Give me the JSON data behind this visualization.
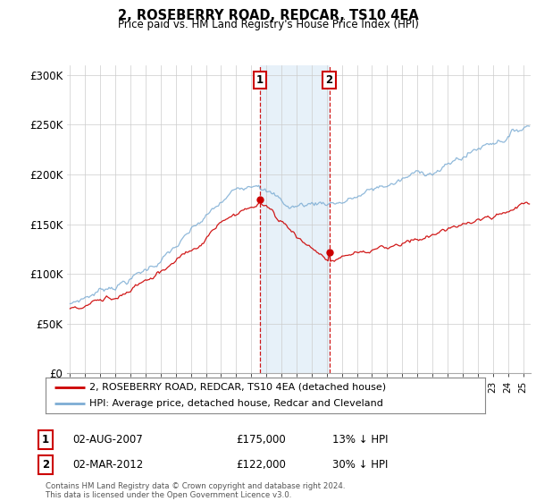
{
  "title": "2, ROSEBERRY ROAD, REDCAR, TS10 4EA",
  "subtitle": "Price paid vs. HM Land Registry's House Price Index (HPI)",
  "ylim": [
    0,
    310000
  ],
  "yticks": [
    0,
    50000,
    100000,
    150000,
    200000,
    250000,
    300000
  ],
  "ytick_labels": [
    "£0",
    "£50K",
    "£100K",
    "£150K",
    "£200K",
    "£250K",
    "£300K"
  ],
  "legend_line1": "2, ROSEBERRY ROAD, REDCAR, TS10 4EA (detached house)",
  "legend_line2": "HPI: Average price, detached house, Redcar and Cleveland",
  "line1_color": "#cc0000",
  "line2_color": "#7dadd4",
  "ann1_label": "1",
  "ann1_date": "02-AUG-2007",
  "ann1_price": "£175,000",
  "ann1_hpi": "13% ↓ HPI",
  "ann1_year": 2007.583,
  "ann1_value": 175000,
  "ann2_label": "2",
  "ann2_date": "02-MAR-2012",
  "ann2_price": "£122,000",
  "ann2_hpi": "30% ↓ HPI",
  "ann2_year": 2012.167,
  "ann2_value": 122000,
  "shade_color": "#d0e4f5",
  "shade_alpha": 0.5,
  "footnote": "Contains HM Land Registry data © Crown copyright and database right 2024.\nThis data is licensed under the Open Government Licence v3.0.",
  "background_color": "#ffffff",
  "grid_color": "#cccccc",
  "xmin": 1995,
  "xmax": 2025.5
}
